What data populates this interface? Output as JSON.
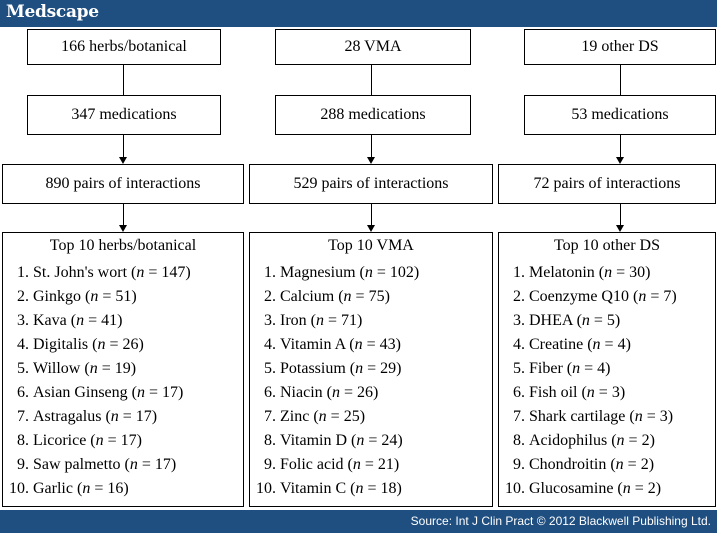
{
  "header": {
    "brand": "Medscape"
  },
  "footer": {
    "source": "Source: Int J Clin Pract © 2012 Blackwell Publishing Ltd."
  },
  "columns": [
    {
      "category": "166 herbs/botanical",
      "medications": "347 medications",
      "interactions": "890 pairs of interactions",
      "top_title": "Top 10 herbs/botanical",
      "items": [
        {
          "num": "1.",
          "name": "St. John's wort",
          "n": "147"
        },
        {
          "num": "2.",
          "name": "Ginkgo",
          "n": "51"
        },
        {
          "num": "3.",
          "name": "Kava",
          "n": "41"
        },
        {
          "num": "4.",
          "name": "Digitalis",
          "n": "26"
        },
        {
          "num": "5.",
          "name": "Willow",
          "n": "19"
        },
        {
          "num": "6.",
          "name": "Asian Ginseng",
          "n": "17"
        },
        {
          "num": "7.",
          "name": "Astragalus",
          "n": "17"
        },
        {
          "num": "8.",
          "name": "Licorice",
          "n": "17"
        },
        {
          "num": "9.",
          "name": "Saw palmetto",
          "n": "17"
        },
        {
          "num": "10.",
          "name": "Garlic",
          "n": "16"
        }
      ]
    },
    {
      "category": "28 VMA",
      "medications": "288 medications",
      "interactions": "529 pairs of interactions",
      "top_title": "Top 10 VMA",
      "items": [
        {
          "num": "1.",
          "name": "Magnesium",
          "n": "102"
        },
        {
          "num": "2.",
          "name": "Calcium",
          "n": "75"
        },
        {
          "num": "3.",
          "name": "Iron",
          "n": "71"
        },
        {
          "num": "4.",
          "name": "Vitamin A",
          "n": "43"
        },
        {
          "num": "5.",
          "name": "Potassium",
          "n": "29"
        },
        {
          "num": "6.",
          "name": "Niacin",
          "n": "26"
        },
        {
          "num": "7.",
          "name": "Zinc",
          "n": "25"
        },
        {
          "num": "8.",
          "name": "Vitamin D",
          "n": "24"
        },
        {
          "num": "9.",
          "name": "Folic acid",
          "n": "21"
        },
        {
          "num": "10.",
          "name": "Vitamin C",
          "n": "18"
        }
      ]
    },
    {
      "category": "19 other DS",
      "medications": "53 medications",
      "interactions": "72 pairs of interactions",
      "top_title": "Top 10 other DS",
      "items": [
        {
          "num": "1.",
          "name": "Melatonin",
          "n": "30"
        },
        {
          "num": "2.",
          "name": "Coenzyme Q10",
          "n": "7"
        },
        {
          "num": "3.",
          "name": "DHEA",
          "n": "5"
        },
        {
          "num": "4.",
          "name": "Creatine",
          "n": "4"
        },
        {
          "num": "5.",
          "name": "Fiber",
          "n": "4"
        },
        {
          "num": "6.",
          "name": "Fish oil",
          "n": "3"
        },
        {
          "num": "7.",
          "name": "Shark cartilage",
          "n": "3"
        },
        {
          "num": "8.",
          "name": "Acidophilus",
          "n": "2"
        },
        {
          "num": "9.",
          "name": "Chondroitin",
          "n": "2"
        },
        {
          "num": "10.",
          "name": "Glucosamine",
          "n": "2"
        }
      ]
    }
  ]
}
